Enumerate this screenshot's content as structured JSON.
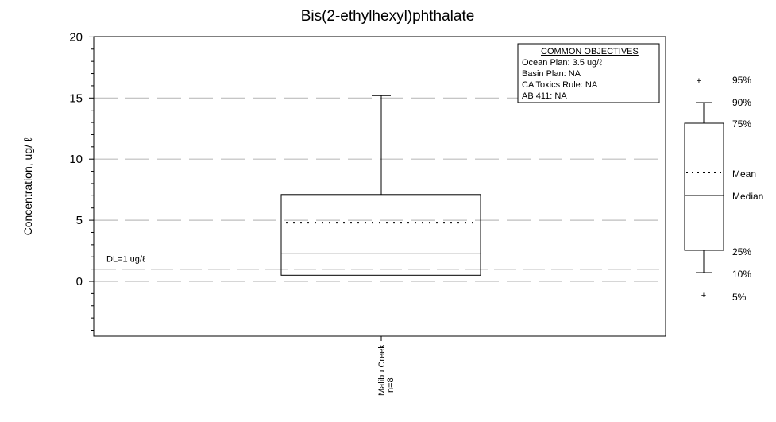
{
  "chart_data": {
    "type": "box",
    "title": "Bis(2-ethylhexyl)phthalate",
    "ylabel": "Concentration, ug/ ℓ",
    "ylim": [
      -4.5,
      20
    ],
    "yticks": [
      0,
      5,
      10,
      15,
      20
    ],
    "y_tick_labels": [
      "0",
      "5",
      "10",
      "15",
      "20"
    ],
    "grid": "horizontal dashed",
    "categories": [
      "Malibu Creek"
    ],
    "category_n": [
      "n=8"
    ],
    "boxes": [
      {
        "category": "Malibu Creek",
        "n": 8,
        "whisker_low": 0.5,
        "q1": 0.5,
        "median": 2.25,
        "mean": 4.8,
        "q3": 7.1,
        "whisker_high": 15.2
      }
    ],
    "reference_lines": [
      {
        "label": "DL=1 ug/ℓ",
        "value": 1.0,
        "style": "long-dash"
      }
    ],
    "objectives": {
      "heading": "COMMON OBJECTIVES",
      "lines": [
        "Ocean Plan: 3.5 ug/ℓ",
        "Basin Plan: NA",
        "CA Toxics Rule: NA",
        "AB 411: NA"
      ]
    },
    "legend": {
      "placement": "right",
      "labels": {
        "p95": "95%",
        "p90": "90%",
        "p75": "75%",
        "mean": "Mean",
        "median": "Median",
        "p25": "25%",
        "p10": "10%",
        "p5": "5%"
      }
    }
  }
}
